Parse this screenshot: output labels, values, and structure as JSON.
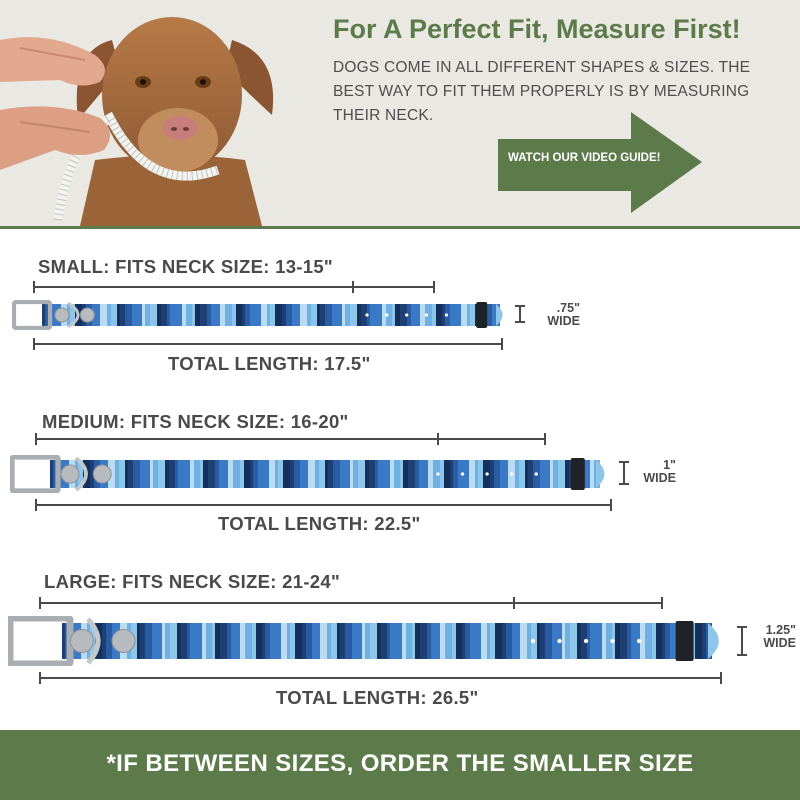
{
  "header": {
    "headline": "For A Perfect Fit, Measure First!",
    "intro": "DOGS COME IN ALL DIFFERENT SHAPES & SIZES. THE BEST WAY TO FIT THEM PROPERLY IS BY MEASURING THEIR NECK.",
    "cta_label": "WATCH OUR VIDEO GUIDE!"
  },
  "sizes": {
    "small": {
      "title": "SMALL:  FITS NECK SIZE: 13-15\"",
      "total": "TOTAL LENGTH: 17.5\"",
      "width_value": ".75\"",
      "width_unit": "WIDE"
    },
    "medium": {
      "title": "MEDIUM:  FITS NECK SIZE: 16-20\"",
      "total": "TOTAL LENGTH: 22.5\"",
      "width_value": "1\"",
      "width_unit": "WIDE"
    },
    "large": {
      "title": "LARGE:  FITS NECK SIZE: 21-24\"",
      "total": "TOTAL LENGTH: 26.5\"",
      "width_value": "1.25\"",
      "width_unit": "WIDE"
    }
  },
  "footer": {
    "note": "*IF BETWEEN SIZES, ORDER THE SMALLER SIZE"
  },
  "colors": {
    "brand_green": "#5d7a4a",
    "text_dark": "#4a4a4a",
    "header_bg": "#e9e8e2",
    "stripe_navy": "#1d3f74",
    "stripe_blue": "#3a79c6",
    "stripe_light": "#8ec5ea"
  },
  "icons": {
    "cta_arrow": "right-arrow-shape",
    "buckle": "buckle-icon",
    "rivet": "rivet-icon"
  }
}
